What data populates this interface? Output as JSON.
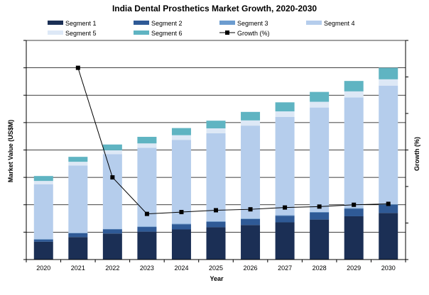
{
  "chart_data": {
    "type": "bar",
    "stacked": true,
    "title": "India Dental Prosthetics Market Growth, 2020-2030",
    "xlabel": "Year",
    "ylabel": "Market Value (US$M)",
    "y2label": "Growth (%)",
    "grid": true,
    "legend_position": "top",
    "categories": [
      "2020",
      "2021",
      "2022",
      "2023",
      "2024",
      "2025",
      "2026",
      "2027",
      "2028",
      "2029",
      "2030"
    ],
    "ylim": [
      0,
      8
    ],
    "y2lim": [
      0,
      12
    ],
    "series": [
      {
        "name": "Segment 1",
        "kind": "bar",
        "color": "#1b2f55",
        "values": [
          0.65,
          0.82,
          0.95,
          1.02,
          1.1,
          1.18,
          1.26,
          1.36,
          1.46,
          1.58,
          1.7
        ]
      },
      {
        "name": "Segment 2",
        "kind": "bar",
        "color": "#2f5a96",
        "values": [
          0.08,
          0.14,
          0.15,
          0.17,
          0.19,
          0.2,
          0.22,
          0.24,
          0.26,
          0.28,
          0.3
        ]
      },
      {
        "name": "Segment 3",
        "kind": "bar",
        "color": "#6c9ccf",
        "values": [
          0.02,
          0.02,
          0.02,
          0.02,
          0.02,
          0.02,
          0.02,
          0.02,
          0.02,
          0.02,
          0.02
        ]
      },
      {
        "name": "Segment 4",
        "kind": "bar",
        "color": "#b5cdec",
        "values": [
          2.0,
          2.45,
          2.73,
          2.87,
          3.06,
          3.21,
          3.39,
          3.59,
          3.81,
          4.04,
          4.33
        ]
      },
      {
        "name": "Segment 5",
        "kind": "bar",
        "color": "#dde8f6",
        "values": [
          0.12,
          0.14,
          0.14,
          0.16,
          0.17,
          0.18,
          0.19,
          0.2,
          0.21,
          0.22,
          0.23
        ]
      },
      {
        "name": "Segment 6",
        "kind": "bar",
        "color": "#5fb4c2",
        "values": [
          0.18,
          0.18,
          0.21,
          0.24,
          0.26,
          0.28,
          0.31,
          0.33,
          0.36,
          0.38,
          0.42
        ]
      },
      {
        "name": "Growth (%)",
        "kind": "line",
        "axis": "right",
        "color": "#000000",
        "values": [
          null,
          10.5,
          4.5,
          2.5,
          2.6,
          2.7,
          2.75,
          2.85,
          2.9,
          3.0,
          3.05
        ]
      }
    ]
  }
}
